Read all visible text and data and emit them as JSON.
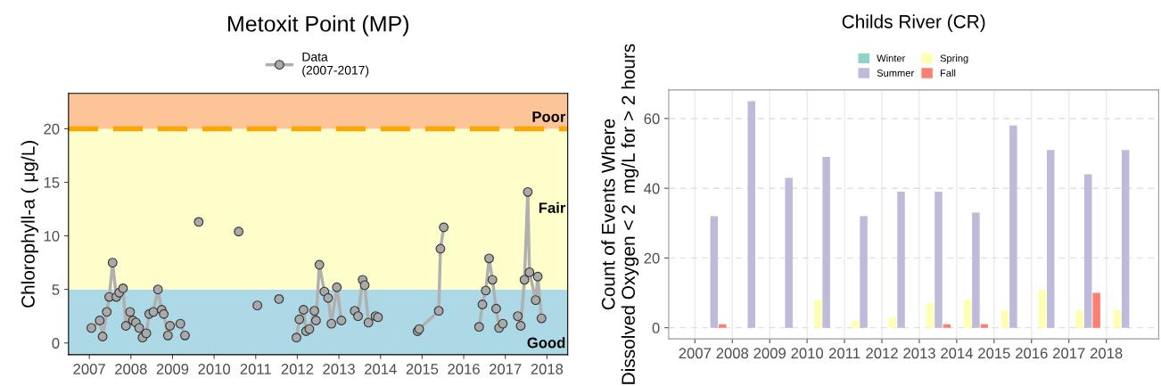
{
  "chart_data": [
    {
      "type": "line",
      "title": "Metoxit Point (MP)",
      "ylabel": "Chlorophyll-a ( μg/L)",
      "xlim": [
        2006.5,
        2018.5
      ],
      "xticks": [
        2007,
        2008,
        2009,
        2010,
        2011,
        2012,
        2013,
        2014,
        2015,
        2016,
        2017,
        2018
      ],
      "ylim": [
        -1.1,
        23.3
      ],
      "yticks": [
        0,
        5,
        10,
        15,
        20
      ],
      "grid": false,
      "legend": "top",
      "marker": "circle",
      "line_style": "solid",
      "bands": [
        {
          "axis": "y",
          "from": -1.1,
          "to": 5,
          "label": "Good",
          "color": "#add8e6"
        },
        {
          "axis": "y",
          "from": 5,
          "to": 20,
          "label": "Fair",
          "color": "#ffffcc"
        },
        {
          "axis": "y",
          "from": 20,
          "to": 23.3,
          "label": "Poor",
          "color": "#fdc597"
        }
      ],
      "ref_lines": [
        {
          "axis": "y",
          "value": 20,
          "color": "#ffa500",
          "line_style": "dashed"
        }
      ],
      "series": [
        {
          "name": "Data\n(2007-2017)",
          "color": "#b0b0b0",
          "x": [
            2007.05,
            2007.25,
            2007.32,
            2007.42,
            2007.48,
            2007.56,
            2007.65,
            2007.72,
            2007.81,
            2007.88,
            2007.98,
            2008.05,
            2008.12,
            2008.2,
            2008.28,
            2008.37,
            2008.44,
            2008.54,
            2008.65,
            2008.74,
            2008.79,
            2008.89,
            2008.94,
            2009.19,
            2009.3,
            2009.45,
            2009.63,
            2010.1,
            2010.59,
            2010.8,
            2011.04,
            2011.3,
            2011.56,
            2011.8,
            2011.98,
            2012.05,
            2012.15,
            2012.21,
            2012.29,
            2012.41,
            2012.45,
            2012.53,
            2012.65,
            2012.74,
            2012.82,
            2012.95,
            2013.06,
            2013.2,
            2013.38,
            2013.46,
            2013.57,
            2013.62,
            2013.71,
            2013.8,
            2013.88,
            2013.91,
            2013.94,
            2014.4,
            2014.89,
            2014.93,
            2015.4,
            2015.44,
            2015.52,
            2016.1,
            2016.37,
            2016.45,
            2016.53,
            2016.61,
            2016.69,
            2016.78,
            2016.85,
            2016.94,
            2017.1,
            2017.3,
            2017.37,
            2017.46,
            2017.54,
            2017.58,
            2017.73,
            2017.78,
            2017.87
          ],
          "values": [
            1.4,
            2.1,
            0.6,
            2.9,
            4.3,
            7.5,
            4.3,
            4.7,
            5.1,
            1.6,
            2.9,
            2.1,
            1.9,
            1.4,
            0.5,
            0.9,
            2.7,
            2.9,
            5.0,
            3.1,
            2.7,
            0.7,
            1.6,
            1.8,
            0.7,
            null,
            11.3,
            null,
            10.4,
            null,
            3.5,
            null,
            4.1,
            null,
            0.5,
            2.2,
            3.1,
            1.1,
            1.3,
            3.0,
            2.1,
            7.3,
            4.8,
            4.2,
            1.8,
            5.2,
            2.1,
            null,
            3.0,
            2.5,
            5.9,
            5.4,
            1.9,
            null,
            2.5,
            null,
            2.4,
            null,
            1.1,
            1.3,
            3.0,
            8.8,
            10.8,
            null,
            1.5,
            3.6,
            4.9,
            7.9,
            5.9,
            3.2,
            1.4,
            1.8,
            null,
            2.5,
            1.6,
            5.9,
            14.1,
            6.6,
            4.0,
            6.2,
            2.3
          ]
        }
      ]
    },
    {
      "type": "bar",
      "title": "Childs River (CR)",
      "ylabel": "Count of Events Where\nDissolved Oxygen < 2  mg/L for > 2 hours",
      "x": [
        2007.4,
        2008.4,
        2009.4,
        2010.4,
        2011.4,
        2012.4,
        2013.4,
        2014.4,
        2015.4,
        2016.4,
        2017.4,
        2018.4
      ],
      "xlim": [
        2006.3,
        2019.4
      ],
      "xticks": [
        2007,
        2008,
        2009,
        2010,
        2011,
        2012,
        2013,
        2014,
        2015,
        2016,
        2017,
        2018
      ],
      "ylim": [
        -3.2,
        68.2
      ],
      "yticks": [
        0,
        20,
        40,
        60
      ],
      "grid": true,
      "legend": "top",
      "series": [
        {
          "name": "Winter",
          "color": "#8dd3c7",
          "values": [
            0,
            0,
            0,
            0,
            0,
            0,
            0,
            0,
            0,
            0,
            0,
            0
          ]
        },
        {
          "name": "Spring",
          "color": "#ffffb3",
          "values": [
            0,
            0,
            0,
            8,
            2,
            3,
            7,
            8,
            5,
            11,
            5,
            5
          ]
        },
        {
          "name": "Summer",
          "color": "#bebada",
          "values": [
            32,
            65,
            43,
            49,
            32,
            39,
            39,
            33,
            58,
            51,
            44,
            51
          ]
        },
        {
          "name": "Fall",
          "color": "#fb8072",
          "values": [
            1,
            0,
            0,
            0,
            0,
            0,
            1,
            1,
            0,
            0,
            10,
            0
          ]
        }
      ]
    }
  ]
}
